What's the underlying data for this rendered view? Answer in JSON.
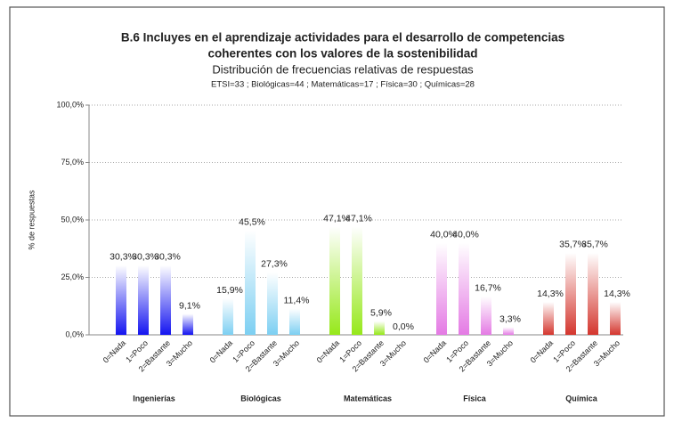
{
  "chart_data": {
    "type": "bar",
    "title": [
      "B.6  Incluyes en el aprendizaje actividades para el desarrollo de competencias",
      "coherentes con los valores de la sostenibilidad"
    ],
    "subtitle": "Distribución de frecuencias relativas de respuestas",
    "note": "ETSI=33 ; Biológicas=44 ; Matemáticas=17 ; Física=30 ; Químicas=28",
    "ylabel": "% de respuestas",
    "ylim": [
      0,
      100
    ],
    "yticks": [
      {
        "value": 0,
        "label": "0,0%"
      },
      {
        "value": 25,
        "label": "25,0%"
      },
      {
        "value": 50,
        "label": "50,0%"
      },
      {
        "value": 75,
        "label": "75,0%"
      },
      {
        "value": 100,
        "label": "100,0%"
      }
    ],
    "grid": true,
    "groups": [
      {
        "name": "Ingenierías",
        "color": "#1414f0",
        "categories": [
          "0=Nada",
          "1=Poco",
          "2=Bastante",
          "3=Mucho"
        ],
        "values": [
          30.3,
          30.3,
          30.3,
          9.1
        ],
        "value_labels": [
          "30,3%",
          "30,3%",
          "30,3%",
          "9,1%"
        ]
      },
      {
        "name": "Biológicas",
        "color": "#7ccff2",
        "categories": [
          "0=Nada",
          "1=Poco",
          "2=Bastante",
          "3=Mucho"
        ],
        "values": [
          15.9,
          45.5,
          27.3,
          11.4
        ],
        "value_labels": [
          "15,9%",
          "45,5%",
          "27,3%",
          "11,4%"
        ]
      },
      {
        "name": "Matemáticas",
        "color": "#96e81a",
        "categories": [
          "0=Nada",
          "1=Poco",
          "2=Bastante",
          "3=Mucho"
        ],
        "values": [
          47.1,
          47.1,
          5.9,
          0.0
        ],
        "value_labels": [
          "47,1%",
          "47,1%",
          "5,9%",
          "0,0%"
        ]
      },
      {
        "name": "Física",
        "color": "#e47ae4",
        "categories": [
          "0=Nada",
          "1=Poco",
          "2=Bastante",
          "3=Mucho"
        ],
        "values": [
          40.0,
          40.0,
          16.7,
          3.3
        ],
        "value_labels": [
          "40,0%",
          "40,0%",
          "16,7%",
          "3,3%"
        ]
      },
      {
        "name": "Química",
        "color": "#d4362e",
        "categories": [
          "0=Nada",
          "1=Poco",
          "2=Bastante",
          "3=Mucho"
        ],
        "values": [
          14.3,
          35.7,
          35.7,
          14.3
        ],
        "value_labels": [
          "14,3%",
          "35,7%",
          "35,7%",
          "14,3%"
        ]
      }
    ]
  }
}
